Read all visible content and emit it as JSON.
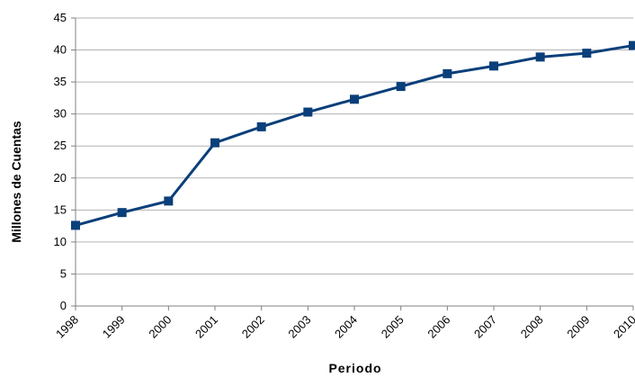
{
  "chart_data": {
    "type": "line",
    "title": "",
    "xlabel": "Periodo",
    "ylabel": "Millones de Cuentas",
    "categories": [
      "1998",
      "1999",
      "2000",
      "2001",
      "2002",
      "2003",
      "2004",
      "2005",
      "2006",
      "2007",
      "2008",
      "2009",
      "2010"
    ],
    "series": [
      {
        "values": [
          12.6,
          14.6,
          16.4,
          25.5,
          28.0,
          30.3,
          32.3,
          34.3,
          36.3,
          37.5,
          38.9,
          39.5,
          40.7
        ]
      }
    ],
    "ylim": [
      0,
      45
    ],
    "yticks": [
      "0",
      "5",
      "10",
      "15",
      "20",
      "25",
      "30",
      "35",
      "40",
      "45"
    ],
    "grid": true,
    "line_color": "#0a3f7a",
    "grid_color": "#b3b3b3"
  }
}
